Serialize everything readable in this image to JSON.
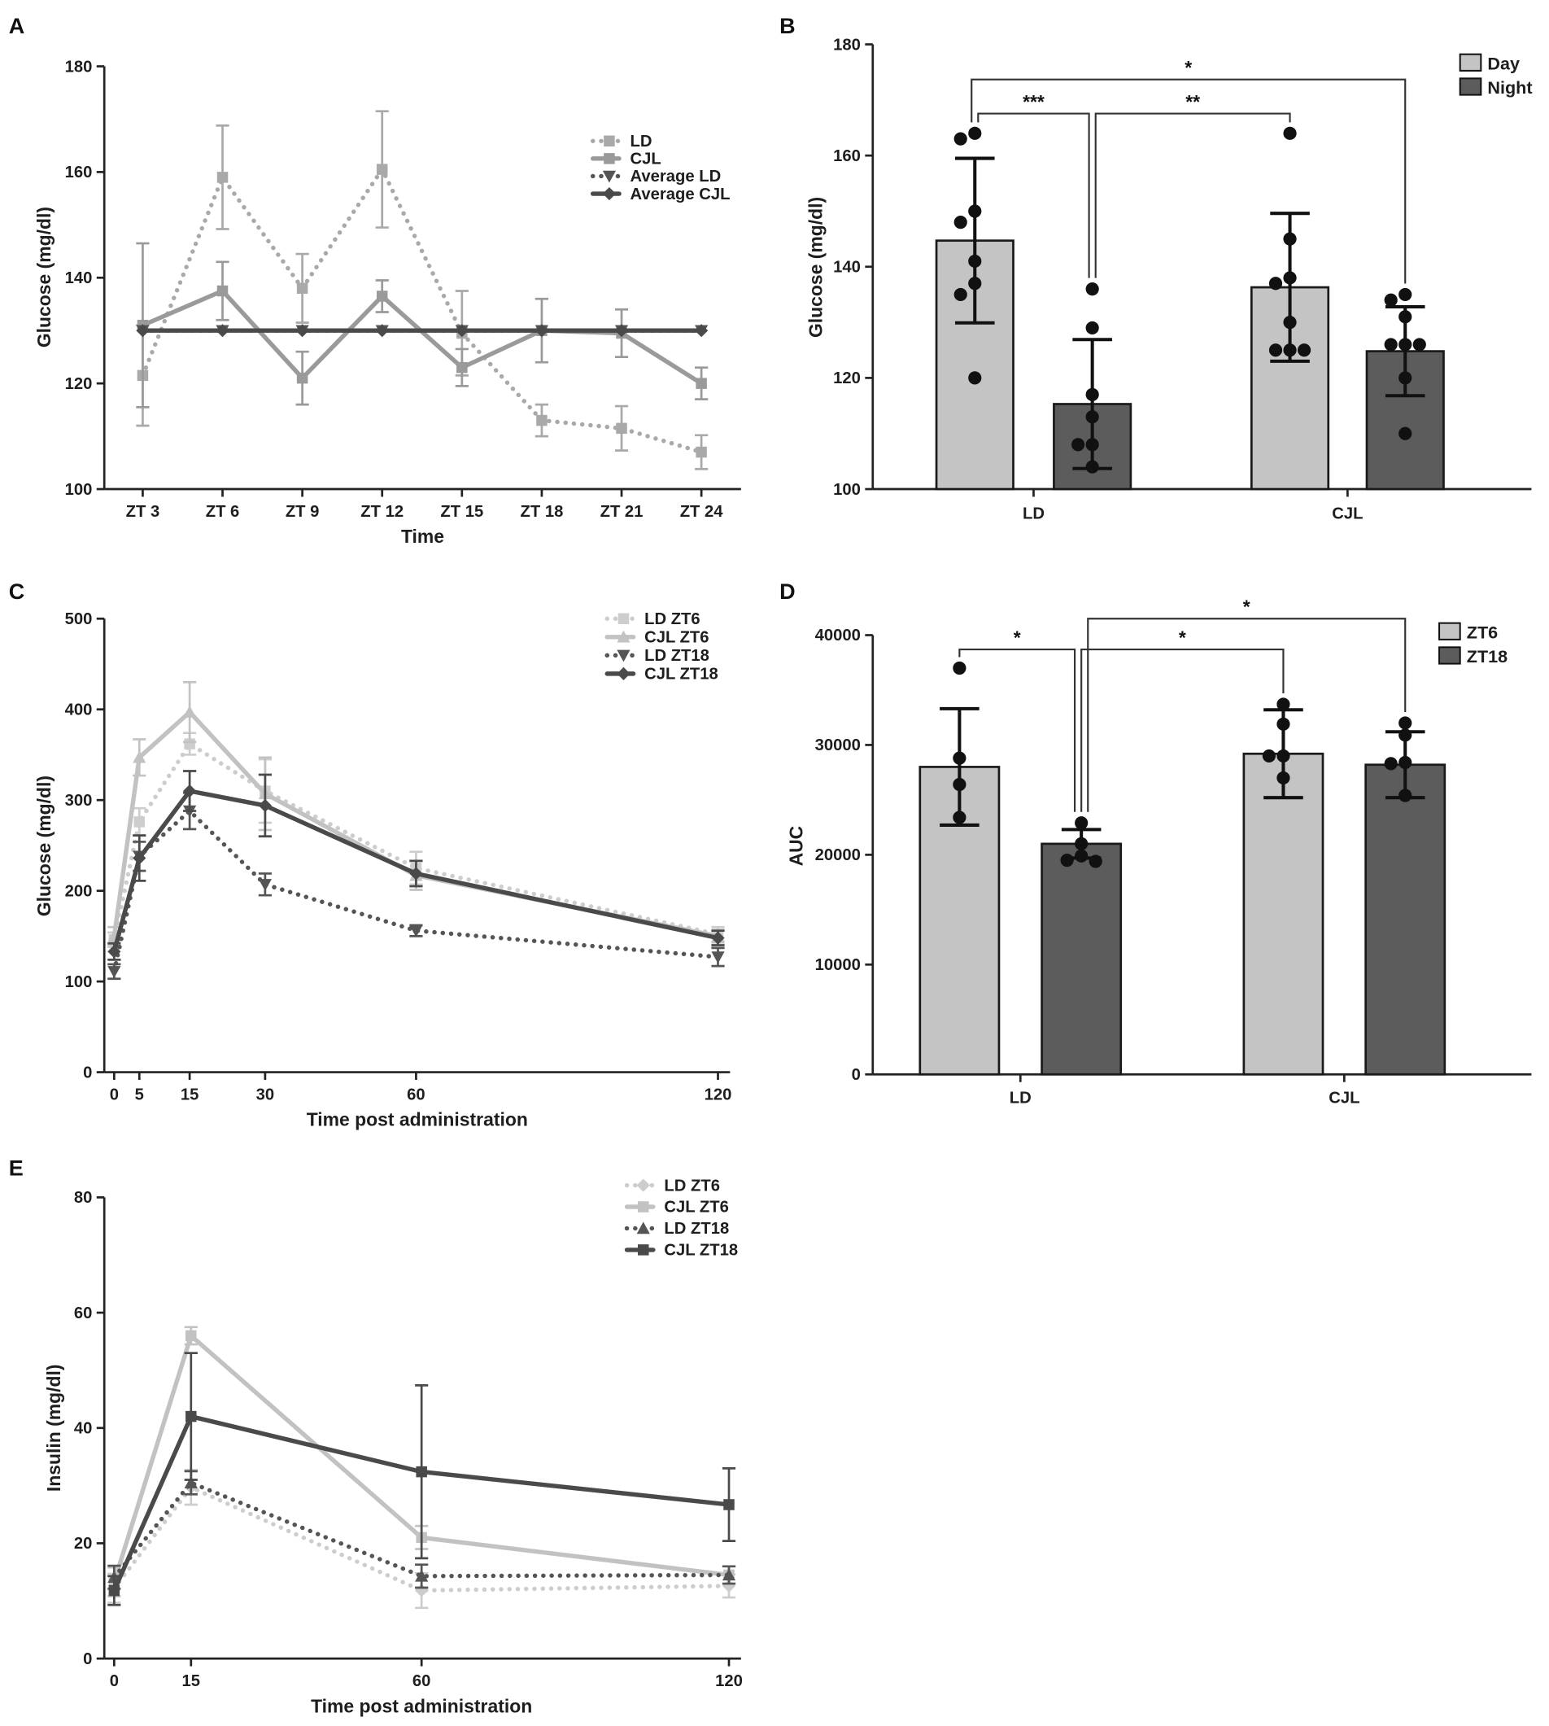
{
  "chart_data": [
    {
      "panel_label": "A",
      "type": "line",
      "xlabel": "Time",
      "ylabel": "Glucose (mg/dl)",
      "categories": [
        "ZT 3",
        "ZT 6",
        "ZT 9",
        "ZT 12",
        "ZT 15",
        "ZT 18",
        "ZT 21",
        "ZT 24"
      ],
      "ylim": [
        100,
        180
      ],
      "yticks": [
        100,
        120,
        140,
        160,
        180
      ],
      "legend": "top-right",
      "series": [
        {
          "name": "LD",
          "line": "dotted",
          "marker": "square",
          "color": "#a9a9a9",
          "values": [
            121.5,
            159,
            138,
            160.5,
            129.5,
            113,
            111.5,
            107
          ],
          "errors": [
            9.5,
            9.8,
            6.5,
            11,
            8,
            3,
            4.2,
            3.2
          ]
        },
        {
          "name": "CJL",
          "line": "solid",
          "marker": "square",
          "color": "#9a9a9a",
          "values": [
            131,
            137.5,
            121,
            136.5,
            123,
            130,
            129.5,
            120
          ],
          "errors": [
            15.5,
            5.5,
            5,
            3,
            3.5,
            6,
            4.5,
            3
          ]
        },
        {
          "name": "Average LD",
          "line": "dotted",
          "marker": "triangle-down",
          "color": "#555555",
          "values": [
            130,
            130,
            130,
            130,
            130,
            130,
            130,
            130
          ]
        },
        {
          "name": "Average CJL",
          "line": "solid",
          "marker": "diamond",
          "color": "#4a4a4a",
          "values": [
            130,
            130,
            130,
            130,
            130,
            130,
            130,
            130
          ]
        }
      ]
    },
    {
      "panel_label": "B",
      "type": "bar",
      "ylabel": "Glucose (mg/dl)",
      "categories": [
        "LD",
        "CJL"
      ],
      "ylim": [
        100,
        180
      ],
      "yticks": [
        100,
        120,
        140,
        160,
        180
      ],
      "legend": "top-right",
      "series": [
        {
          "name": "Day",
          "color": "#c4c4c4",
          "values": [
            144.7,
            136.3
          ],
          "sd": [
            14.8,
            13.3
          ],
          "points": [
            [
              164,
              163,
              150,
              148,
              141,
              137,
              135,
              120
            ],
            [
              164,
              145,
              138,
              137,
              130,
              125,
              125,
              125
            ]
          ]
        },
        {
          "name": "Night",
          "color": "#5c5c5c",
          "values": [
            115.3,
            124.8
          ],
          "sd": [
            11.6,
            8.0
          ],
          "points": [
            [
              136,
              129,
              117,
              113,
              108,
              108,
              104
            ],
            [
              135,
              134,
              131,
              126,
              126,
              126,
              120,
              110
            ]
          ]
        }
      ],
      "significance": [
        {
          "a": [
            0,
            0
          ],
          "b": [
            1,
            1
          ],
          "label": "*"
        },
        {
          "a": [
            0,
            0
          ],
          "b": [
            0,
            1
          ],
          "label": "***"
        },
        {
          "a": [
            0,
            1
          ],
          "b": [
            1,
            0
          ],
          "label": "**"
        }
      ]
    },
    {
      "panel_label": "C",
      "type": "line",
      "xlabel": "Time post administration",
      "ylabel": "Glucose (mg/dl)",
      "x": [
        0,
        5,
        15,
        30,
        60,
        120
      ],
      "xticks": [
        0,
        5,
        15,
        30,
        60,
        120
      ],
      "xlim": [
        0,
        120
      ],
      "ylim": [
        0,
        500
      ],
      "yticks": [
        0,
        100,
        200,
        300,
        400,
        500
      ],
      "legend": "top-right",
      "series": [
        {
          "name": "LD ZT6",
          "line": "dotted",
          "marker": "square",
          "color": "#cdcdcd",
          "values": [
            146,
            276,
            362,
            310,
            225,
            152
          ],
          "errors": [
            8,
            15,
            12,
            35,
            18,
            8
          ]
        },
        {
          "name": "CJL ZT6",
          "line": "solid",
          "marker": "triangle-up",
          "color": "#c2c2c2",
          "values": [
            150,
            347,
            397,
            307,
            217,
            150
          ],
          "errors": [
            10,
            20,
            33,
            40,
            16,
            7
          ]
        },
        {
          "name": "LD ZT18",
          "line": "dotted",
          "marker": "triangle-down",
          "color": "#555555",
          "values": [
            111,
            238,
            288,
            207,
            156,
            127
          ],
          "errors": [
            8,
            16,
            20,
            12,
            6,
            10
          ]
        },
        {
          "name": "CJL ZT18",
          "line": "solid",
          "marker": "diamond",
          "color": "#4a4a4a",
          "values": [
            133,
            236,
            310,
            294,
            219,
            148
          ],
          "errors": [
            9,
            25,
            22,
            34,
            14,
            8
          ]
        }
      ]
    },
    {
      "panel_label": "D",
      "type": "bar",
      "ylabel": "AUC",
      "categories": [
        "LD",
        "CJL"
      ],
      "ylim": [
        0,
        40000
      ],
      "yticks": [
        0,
        10000,
        20000,
        30000,
        40000
      ],
      "legend": "top-right",
      "series": [
        {
          "name": "ZT6",
          "color": "#c4c4c4",
          "values": [
            28000,
            29200
          ],
          "sd": [
            5300,
            4000
          ],
          "points": [
            [
              37000,
              28800,
              26400,
              23400
            ],
            [
              33700,
              31900,
              29000,
              29000,
              27000
            ]
          ]
        },
        {
          "name": "ZT18",
          "color": "#5c5c5c",
          "values": [
            21000,
            28200
          ],
          "sd": [
            1300,
            3000
          ],
          "points": [
            [
              22900,
              21000,
              19900,
              19500,
              19400
            ],
            [
              32000,
              30900,
              28400,
              28300,
              25400
            ]
          ]
        }
      ],
      "significance": [
        {
          "a": [
            0,
            0
          ],
          "b": [
            0,
            1
          ],
          "label": "*"
        },
        {
          "a": [
            0,
            1
          ],
          "b": [
            1,
            0
          ],
          "label": "*"
        },
        {
          "a": [
            0,
            1
          ],
          "b": [
            1,
            1
          ],
          "label": "*"
        }
      ]
    },
    {
      "panel_label": "E",
      "type": "line",
      "xlabel": "Time post administration",
      "ylabel": "Insulin (mg/dl)",
      "x": [
        0,
        15,
        60,
        120
      ],
      "xticks": [
        0,
        15,
        60,
        120
      ],
      "xlim": [
        0,
        120
      ],
      "ylim": [
        0,
        80
      ],
      "yticks": [
        0,
        20,
        40,
        60,
        80
      ],
      "legend": "top-right",
      "series": [
        {
          "name": "LD ZT6",
          "line": "dotted",
          "marker": "diamond",
          "color": "#cdcdcd",
          "values": [
            12.2,
            29.7,
            11.8,
            12.6
          ],
          "errors": [
            2.5,
            3,
            3,
            2
          ]
        },
        {
          "name": "CJL ZT6",
          "line": "solid",
          "marker": "square",
          "color": "#c2c2c2",
          "values": [
            13.3,
            56,
            21,
            14.5
          ],
          "errors": [
            2.5,
            1.5,
            2,
            1.5
          ]
        },
        {
          "name": "LD ZT18",
          "line": "dotted",
          "marker": "triangle-up",
          "color": "#555555",
          "values": [
            14.1,
            30.5,
            14.3,
            14.5
          ],
          "errors": [
            2,
            2,
            2,
            1.5
          ]
        },
        {
          "name": "CJL ZT18",
          "line": "solid",
          "marker": "square",
          "color": "#4a4a4a",
          "values": [
            11.8,
            42,
            32.4,
            26.7
          ],
          "errors": [
            2.5,
            11,
            15,
            6.3
          ]
        }
      ]
    }
  ]
}
